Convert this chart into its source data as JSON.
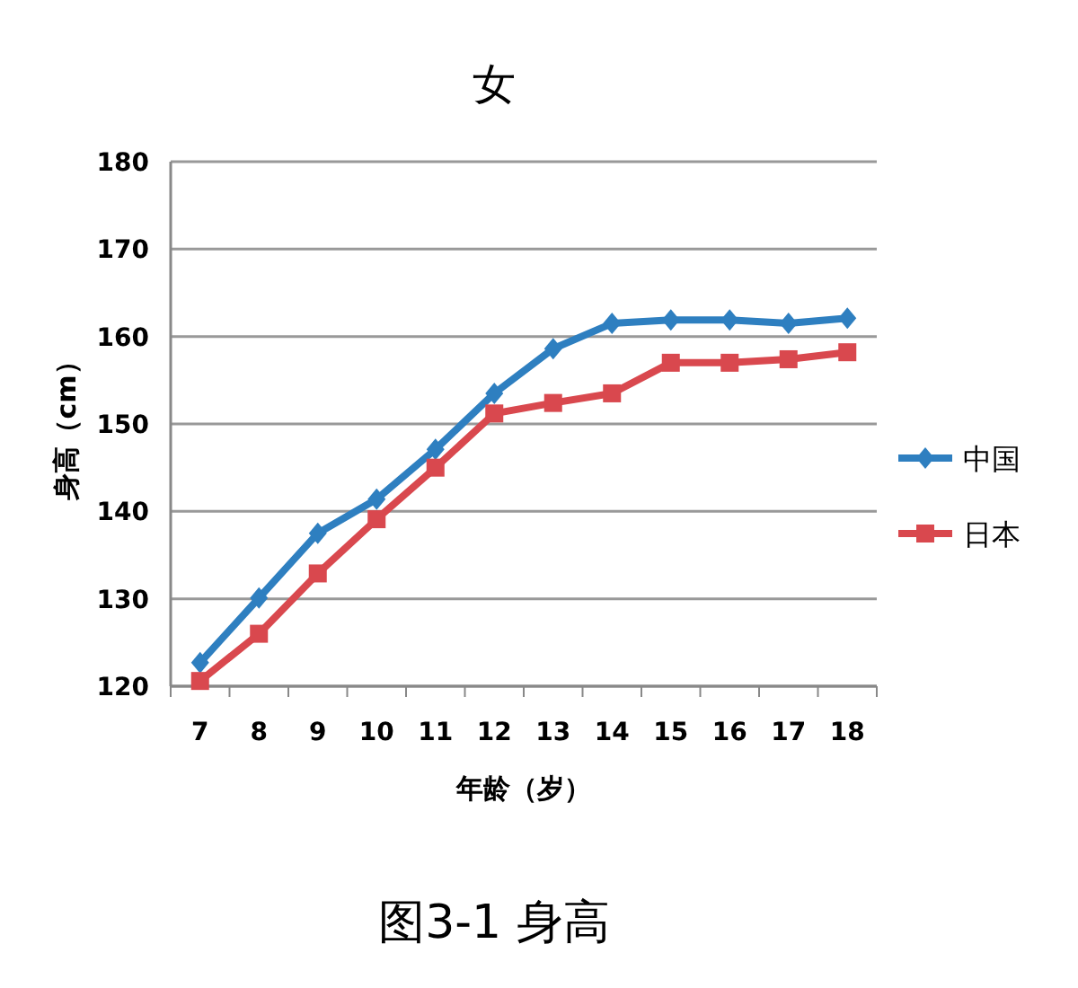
{
  "chart_data": {
    "type": "line",
    "title": "女",
    "xlabel": "年龄（岁）",
    "ylabel": "身高（cm）",
    "annotations": [
      "图3-1 身高"
    ],
    "categories": [
      "7",
      "8",
      "9",
      "10",
      "11",
      "12",
      "13",
      "14",
      "15",
      "16",
      "17",
      "18"
    ],
    "ylim": [
      120,
      180
    ],
    "yticks": [
      120,
      130,
      140,
      150,
      160,
      170,
      180
    ],
    "grid": "y",
    "legend": "right",
    "series": [
      {
        "name": "中国",
        "color": "#2e7fc0",
        "marker": "diamond",
        "values": [
          122.7,
          130.1,
          137.5,
          141.4,
          147.1,
          153.5,
          158.6,
          161.5,
          161.9,
          161.9,
          161.5,
          162.1
        ]
      },
      {
        "name": "日本",
        "color": "#d9484e",
        "marker": "square",
        "values": [
          120.6,
          126,
          132.9,
          139.1,
          145,
          151.2,
          152.4,
          153.5,
          157,
          157,
          157.4,
          158.2
        ]
      }
    ]
  }
}
